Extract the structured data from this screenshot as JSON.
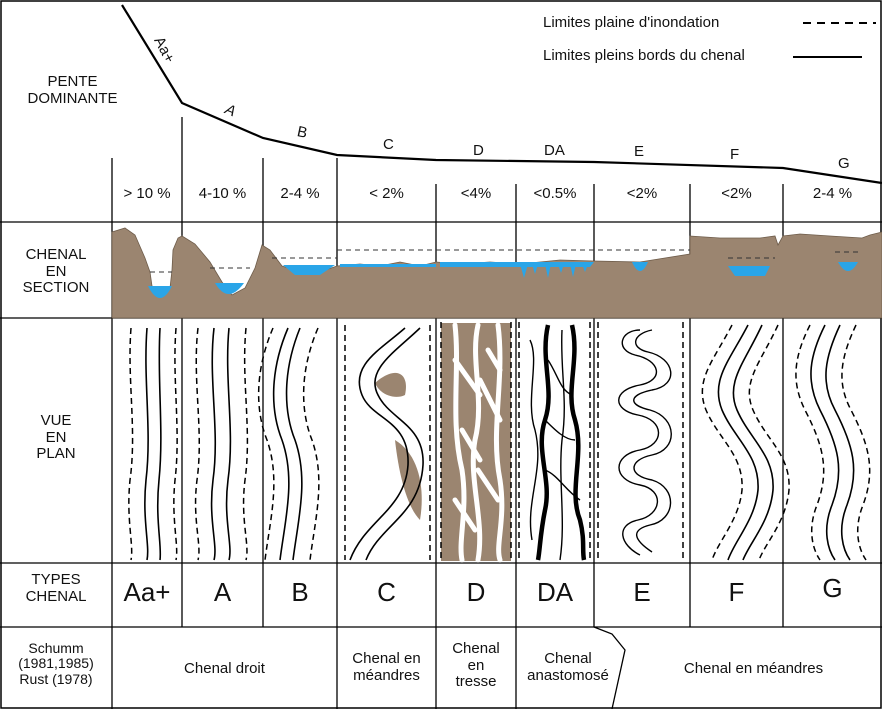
{
  "legend": {
    "flood_plain": "Limites plaine d'inondation",
    "bankfull": "Limites pleins bords du chenal"
  },
  "rows": {
    "slope": "PENTE\nDOMINANTE",
    "section": "CHENAL\nEN\nSECTION",
    "plan": "VUE\nEN\nPLAN",
    "types": "TYPES\nCHENAL",
    "refs": "Schumm\n(1981,1985)\nRust (1978)"
  },
  "profile_labels": [
    "Aa+",
    "A",
    "B",
    "C",
    "D",
    "DA",
    "E",
    "F",
    "G"
  ],
  "slopes": [
    "> 10 %",
    "4-10 %",
    "2-4 %",
    "< 2%",
    "<4%",
    "<0.5%",
    "<2%",
    "<2%",
    "2-4 %"
  ],
  "types": [
    "Aa+",
    "A",
    "B",
    "C",
    "D",
    "DA",
    "E",
    "F",
    "G"
  ],
  "classes": [
    "Chenal droit",
    "Chenal en\nméandres",
    "Chenal\nen\ntresse",
    "Chenal\nanastomosé",
    "Chenal en méandres"
  ],
  "colors": {
    "sediment": "#9b8570",
    "water": "#2aa5e8"
  }
}
